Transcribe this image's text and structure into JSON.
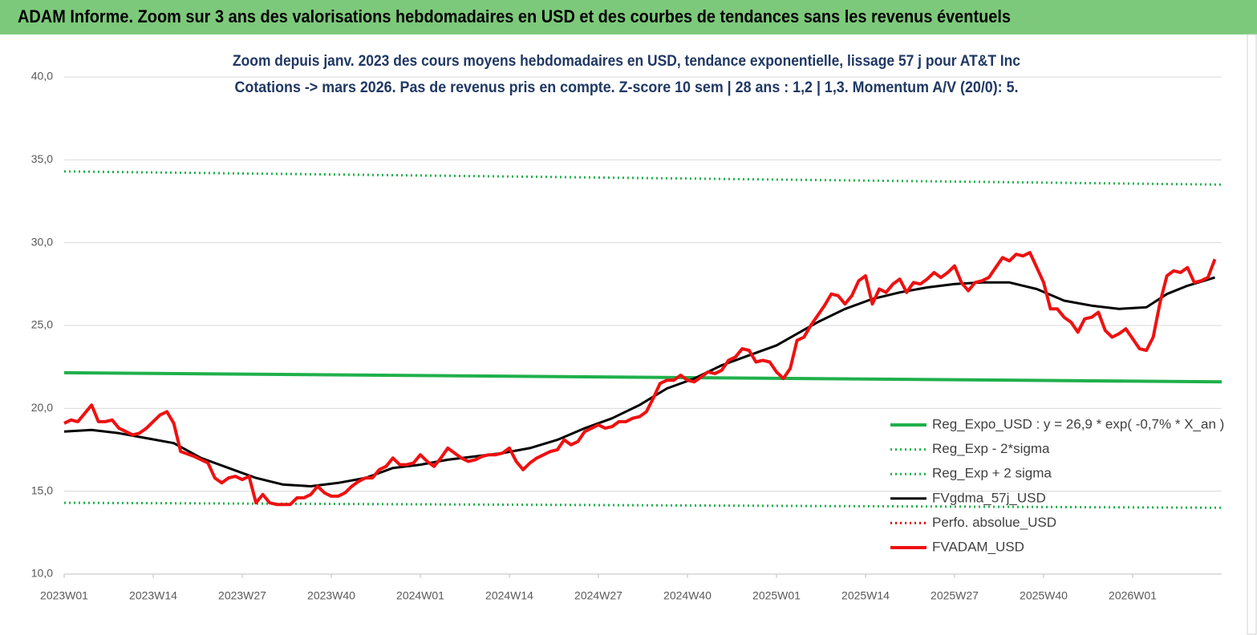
{
  "chart_data": {
    "type": "line",
    "title": "ADAM Informe. Zoom sur 3 ans des valorisations hebdomadaires en USD et des courbes de tendances sans les revenus éventuels",
    "subtitle": [
      "Zoom depuis janv. 2023 des cours moyens hebdomadaires en USD, tendance exponentielle, lissage 57 j pour AT&T Inc",
      "Cotations -> mars 2026. Pas de revenus pris en compte. Z-score 10 sem | 28 ans : 1,2 | 1,3. Momentum A/V (20/0): 5."
    ],
    "xlim": [
      0,
      169
    ],
    "xticks": [
      {
        "value": 0,
        "label": "2023W01"
      },
      {
        "value": 13,
        "label": "2023W14"
      },
      {
        "value": 26,
        "label": "2023W27"
      },
      {
        "value": 39,
        "label": "2023W40"
      },
      {
        "value": 52,
        "label": "2024W01"
      },
      {
        "value": 65,
        "label": "2024W14"
      },
      {
        "value": 78,
        "label": "2024W27"
      },
      {
        "value": 91,
        "label": "2024W40"
      },
      {
        "value": 104,
        "label": "2025W01"
      },
      {
        "value": 117,
        "label": "2025W14"
      },
      {
        "value": 130,
        "label": "2025W27"
      },
      {
        "value": 143,
        "label": "2025W40"
      },
      {
        "value": 156,
        "label": "2026W01"
      }
    ],
    "ylim": [
      10,
      40
    ],
    "yticks": [
      {
        "value": 10,
        "label": "10,0"
      },
      {
        "value": 15,
        "label": "15,0"
      },
      {
        "value": 20,
        "label": "20,0"
      },
      {
        "value": 25,
        "label": "25,0"
      },
      {
        "value": 30,
        "label": "30,0"
      },
      {
        "value": 35,
        "label": "35,0"
      },
      {
        "value": 40,
        "label": "40,0"
      }
    ],
    "grid": true,
    "legend": "lower-right",
    "series": [
      {
        "name": "Reg_Expo_USD : y = 26,9 * exp( -0,7% *  X_an )",
        "color": "#1fb04b",
        "line_style": "solid",
        "x": [
          0,
          169
        ],
        "values": [
          22.15,
          21.6
        ]
      },
      {
        "name": "Reg_Exp - 2*sigma",
        "color": "#1fb04b",
        "line_style": "dotted",
        "x": [
          0,
          169
        ],
        "values": [
          14.3,
          14.0
        ]
      },
      {
        "name": "Reg_Exp + 2 sigma",
        "color": "#1fb04b",
        "line_style": "dotted",
        "x": [
          0,
          169
        ],
        "values": [
          34.3,
          33.5
        ]
      },
      {
        "name": "FVgdma_57j_USD",
        "color": "#000000",
        "line_style": "solid",
        "x": [
          0,
          4,
          8,
          12,
          16,
          20,
          24,
          28,
          30,
          32,
          36,
          40,
          44,
          48,
          52,
          56,
          60,
          64,
          68,
          72,
          76,
          80,
          84,
          88,
          92,
          96,
          100,
          104,
          107,
          110,
          114,
          118,
          122,
          126,
          130,
          134,
          138,
          142,
          146,
          150,
          154,
          158,
          161,
          164,
          168
        ],
        "values": [
          18.6,
          18.7,
          18.5,
          18.2,
          17.9,
          17.0,
          16.4,
          15.8,
          15.6,
          15.4,
          15.3,
          15.5,
          15.8,
          16.4,
          16.6,
          16.9,
          17.1,
          17.3,
          17.6,
          18.1,
          18.8,
          19.4,
          20.2,
          21.2,
          21.8,
          22.6,
          23.2,
          23.8,
          24.5,
          25.2,
          26.0,
          26.6,
          27.0,
          27.3,
          27.5,
          27.6,
          27.6,
          27.2,
          26.5,
          26.2,
          26.0,
          26.1,
          26.9,
          27.4,
          27.9
        ]
      },
      {
        "name": "Perfo. absolue_USD",
        "color": "#e00000",
        "line_style": "dotted",
        "x": [],
        "values": []
      },
      {
        "name": "FVADAM_USD",
        "color": "#ee1111",
        "line_style": "solid",
        "x": [
          0,
          1,
          2,
          4,
          5,
          6,
          7,
          8,
          10,
          11,
          12,
          14,
          15,
          16,
          17,
          19,
          21,
          22,
          23,
          24,
          25,
          26,
          27,
          28,
          29,
          30,
          31,
          32,
          33,
          34,
          35,
          36,
          37,
          38,
          39,
          40,
          41,
          42,
          43,
          44,
          45,
          46,
          47,
          48,
          49,
          50,
          51,
          52,
          53,
          54,
          55,
          56,
          57,
          58,
          59,
          60,
          61,
          62,
          63,
          64,
          65,
          66,
          67,
          68,
          69,
          70,
          71,
          72,
          73,
          74,
          75,
          76,
          77,
          78,
          79,
          80,
          81,
          82,
          83,
          84,
          85,
          86,
          87,
          88,
          89,
          90,
          91,
          92,
          93,
          94,
          95,
          96,
          97,
          98,
          99,
          100,
          101,
          102,
          103,
          104,
          105,
          106,
          107,
          108,
          109,
          110,
          111,
          112,
          113,
          114,
          115,
          116,
          117,
          118,
          119,
          120,
          121,
          122,
          123,
          124,
          125,
          126,
          127,
          128,
          129,
          130,
          131,
          132,
          133,
          134,
          135,
          136,
          137,
          138,
          139,
          140,
          141,
          142,
          143,
          144,
          145,
          146,
          147,
          148,
          149,
          150,
          151,
          152,
          153,
          154,
          155,
          156,
          157,
          158,
          159,
          160,
          161,
          162,
          163,
          164,
          165,
          166,
          167,
          168
        ],
        "values": [
          19.1,
          19.3,
          19.2,
          20.2,
          19.2,
          19.2,
          19.3,
          18.8,
          18.4,
          18.5,
          18.8,
          19.6,
          19.8,
          19.1,
          17.4,
          17.1,
          16.7,
          15.8,
          15.5,
          15.8,
          15.9,
          15.7,
          15.9,
          14.3,
          14.8,
          14.3,
          14.2,
          14.2,
          14.2,
          14.6,
          14.6,
          14.8,
          15.3,
          14.9,
          14.7,
          14.7,
          14.9,
          15.3,
          15.6,
          15.8,
          15.8,
          16.3,
          16.5,
          17.0,
          16.6,
          16.6,
          16.7,
          17.2,
          16.8,
          16.5,
          17.0,
          17.6,
          17.3,
          17.0,
          16.8,
          16.9,
          17.1,
          17.2,
          17.2,
          17.3,
          17.6,
          16.8,
          16.3,
          16.7,
          17.0,
          17.2,
          17.4,
          17.5,
          18.1,
          17.8,
          18.0,
          18.6,
          18.8,
          19.0,
          18.8,
          18.9,
          19.2,
          19.2,
          19.4,
          19.5,
          19.8,
          20.6,
          21.5,
          21.7,
          21.7,
          22.0,
          21.7,
          21.6,
          21.9,
          22.2,
          22.1,
          22.3,
          22.9,
          23.1,
          23.6,
          23.5,
          22.8,
          22.9,
          22.8,
          22.2,
          21.8,
          22.4,
          24.1,
          24.3,
          25.0,
          25.6,
          26.2,
          26.9,
          26.8,
          26.3,
          26.8,
          27.7,
          28.0,
          26.3,
          27.2,
          27.0,
          27.5,
          27.8,
          27.0,
          27.6,
          27.5,
          27.8,
          28.2,
          27.9,
          28.2,
          28.6,
          27.6,
          27.1,
          27.6,
          27.7,
          27.9,
          28.5,
          29.1,
          28.9,
          29.3,
          29.2,
          29.4,
          28.5,
          27.6,
          26.0,
          26.0,
          25.5,
          25.2,
          24.6,
          25.4,
          25.5,
          25.8,
          24.7,
          24.3,
          24.5,
          24.8,
          24.2,
          23.6,
          23.5,
          24.3,
          26.4,
          28.0,
          28.3,
          28.2,
          28.5,
          27.6,
          27.7,
          27.9,
          29.0
        ]
      }
    ]
  }
}
